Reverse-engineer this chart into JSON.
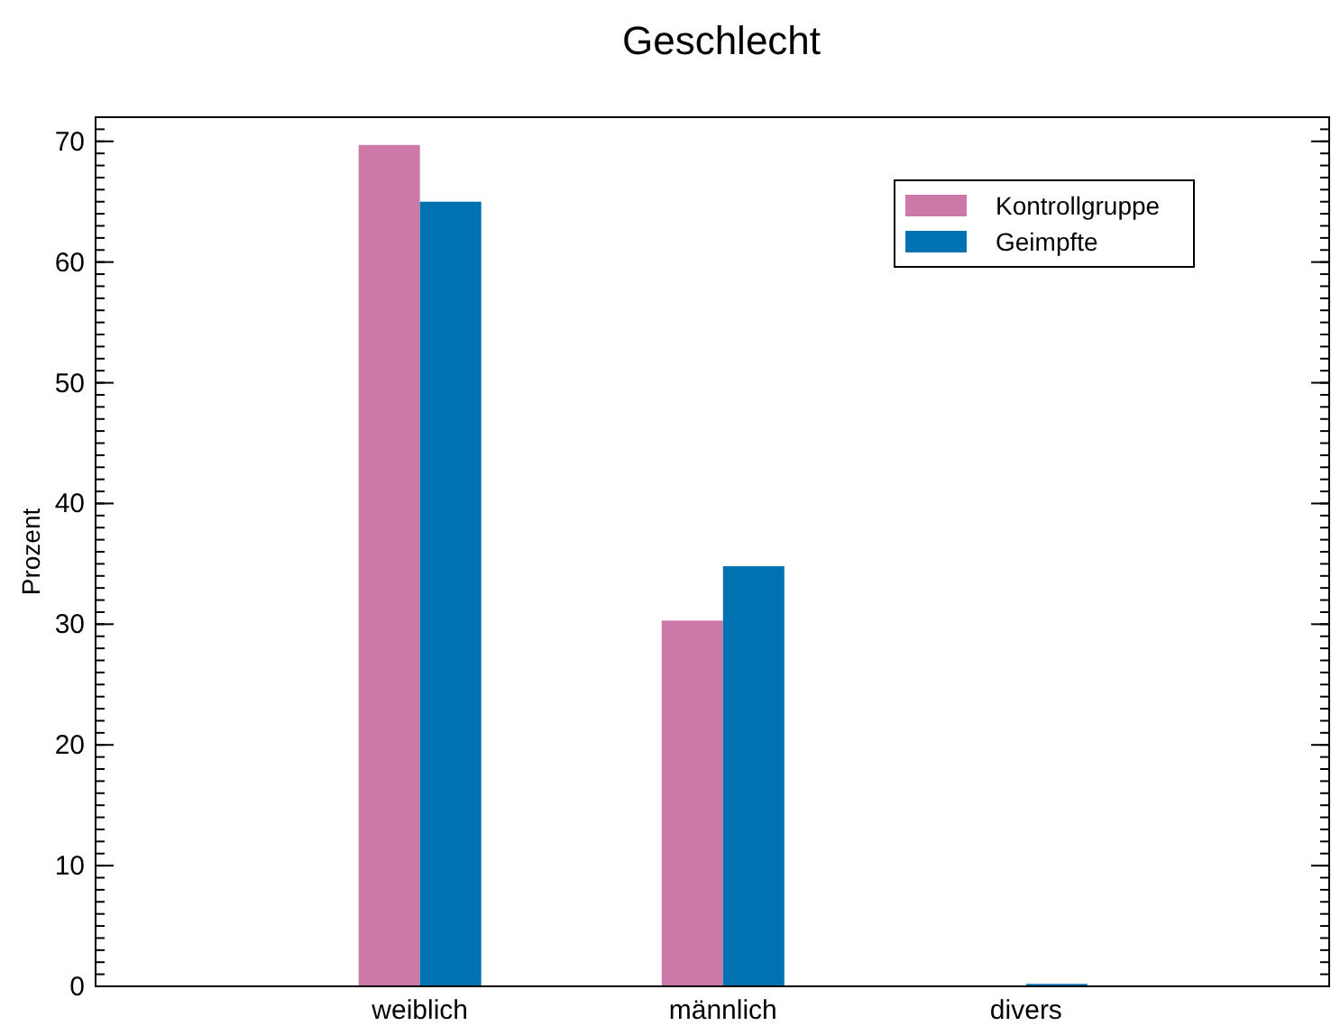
{
  "chart_data": {
    "type": "bar",
    "title": "Geschlecht",
    "ylabel": "Prozent",
    "categories": [
      "weiblich",
      "männlich",
      "divers"
    ],
    "series": [
      {
        "name": "Kontrollgruppe",
        "color": "#cc79a7",
        "values": [
          69.7,
          30.3,
          0
        ]
      },
      {
        "name": "Geimpfte",
        "color": "#0072b2",
        "values": [
          65.0,
          34.8,
          0.2
        ]
      }
    ],
    "ylim": [
      0,
      72
    ],
    "yticks": [
      0,
      10,
      20,
      30,
      40,
      50,
      60,
      70
    ],
    "legend": "top right",
    "grid": false
  }
}
